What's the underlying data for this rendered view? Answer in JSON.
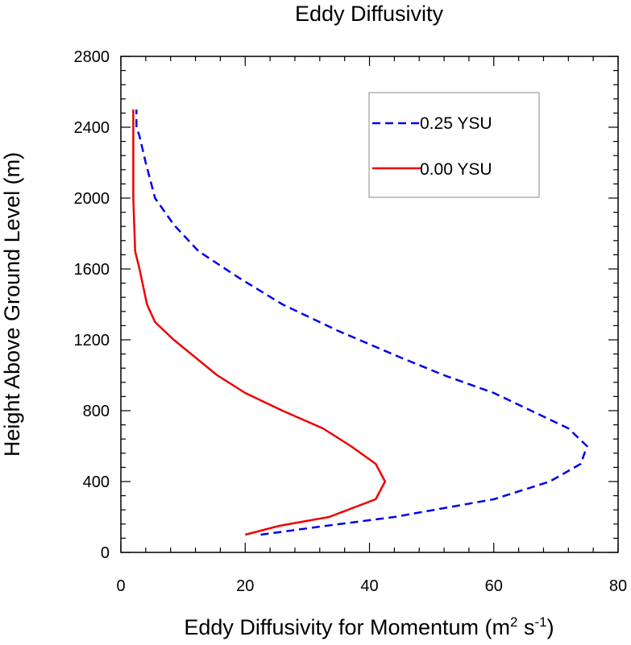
{
  "chart_data": {
    "type": "line",
    "title": "Eddy Diffusivity",
    "xlabel": "Eddy Diffusivity for Momentum (m",
    "xlabel_sup1": "2",
    "xlabel_mid": " s",
    "xlabel_sup2": "-1",
    "xlabel_end": ")",
    "ylabel": "Height Above Ground Level (m)",
    "xlim": [
      0,
      80
    ],
    "ylim": [
      0,
      2800
    ],
    "xticks": [
      "0",
      "20",
      "40",
      "60",
      "80"
    ],
    "yticks": [
      "0",
      "400",
      "800",
      "1200",
      "1600",
      "2000",
      "2400",
      "2800"
    ],
    "grid": false,
    "legend_position": "top-right",
    "series": [
      {
        "name": "0.25 YSU",
        "color": "#0000ee",
        "dash": "dashed",
        "x": [
          22.5,
          33,
          44,
          52,
          60,
          69,
          74,
          75,
          72,
          66,
          60,
          52,
          45,
          35,
          26,
          19,
          12.5,
          8.5,
          5.5,
          4,
          3,
          2.5,
          2.5
        ],
        "y": [
          100,
          150,
          200,
          250,
          300,
          400,
          500,
          600,
          700,
          800,
          900,
          1000,
          1100,
          1250,
          1400,
          1550,
          1700,
          1850,
          2000,
          2200,
          2350,
          2400,
          2500
        ]
      },
      {
        "name": "0.00 YSU",
        "color": "#ee0000",
        "dash": "solid",
        "x": [
          20,
          25.5,
          33.5,
          41,
          42.5,
          41,
          37,
          32.5,
          26,
          20,
          15.5,
          8.5,
          5.5,
          4.2,
          3,
          2.3,
          2,
          2,
          2,
          2
        ],
        "y": [
          100,
          150,
          200,
          300,
          400,
          500,
          600,
          700,
          800,
          900,
          1000,
          1200,
          1300,
          1400,
          1600,
          1700,
          2000,
          2200,
          2400,
          2500
        ]
      }
    ]
  }
}
